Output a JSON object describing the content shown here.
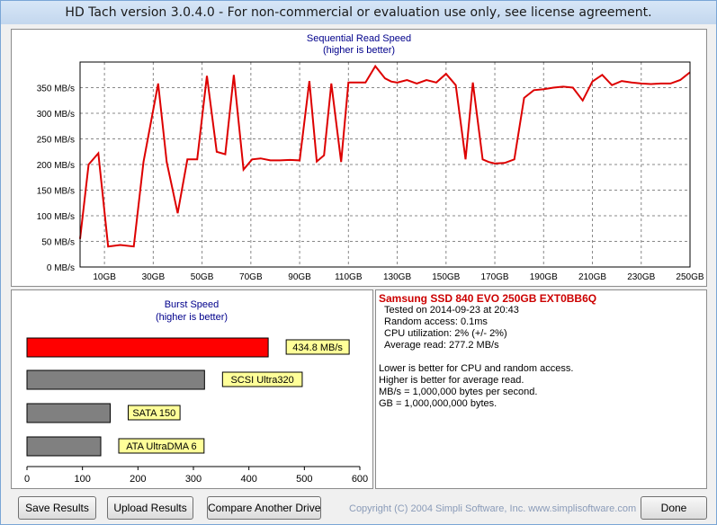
{
  "window": {
    "title": "HD Tach version 3.0.4.0  - For non-commercial or evaluation use only, see license agreement."
  },
  "sequential_chart": {
    "title": "Sequential Read Speed",
    "subtitle": "(higher is better)"
  },
  "burst_chart": {
    "title": "Burst Speed",
    "subtitle": "(higher is better)"
  },
  "chart_data": [
    {
      "type": "line",
      "title": "Sequential Read Speed",
      "subtitle": "(higher is better)",
      "xlim": [
        0,
        250
      ],
      "ylim": [
        0,
        400
      ],
      "grid": true,
      "y_ticks": [
        0,
        50,
        100,
        150,
        200,
        250,
        300,
        350
      ],
      "y_tick_labels": [
        "0 MB/s",
        "50 MB/s",
        "100 MB/s",
        "150 MB/s",
        "200 MB/s",
        "250 MB/s",
        "300 MB/s",
        "350 MB/s"
      ],
      "x_ticks": [
        10,
        30,
        50,
        70,
        90,
        110,
        130,
        150,
        170,
        190,
        210,
        230,
        250
      ],
      "x_tick_labels": [
        "10GB",
        "30GB",
        "50GB",
        "70GB",
        "90GB",
        "110GB",
        "130GB",
        "150GB",
        "170GB",
        "190GB",
        "210GB",
        "230GB",
        "250GB"
      ],
      "color": "#dd0000",
      "x": [
        0,
        3.5,
        7.5,
        11.5,
        16.5,
        22,
        26,
        32,
        35.5,
        40,
        44,
        48,
        52,
        56,
        59.5,
        63,
        67,
        70.5,
        74,
        78,
        82,
        86,
        90,
        94,
        97,
        100,
        103,
        107,
        110,
        113,
        117,
        121,
        125,
        127.5,
        130,
        134,
        138,
        142,
        146,
        150,
        154,
        158,
        161,
        165,
        167.5,
        170,
        174,
        178,
        182,
        186,
        190,
        194,
        198,
        202,
        206,
        210,
        214,
        218,
        222,
        226,
        230,
        234,
        238,
        242,
        246,
        250
      ],
      "y": [
        55,
        200,
        222,
        40,
        43,
        40,
        205,
        358,
        205,
        105,
        210,
        210,
        373,
        225,
        220,
        375,
        190,
        210,
        212,
        208,
        208,
        209,
        208,
        363,
        206,
        218,
        358,
        205,
        360,
        360,
        360,
        392,
        368,
        362,
        360,
        365,
        358,
        365,
        360,
        377,
        355,
        210,
        360,
        210,
        205,
        202,
        203,
        210,
        330,
        345,
        347,
        350,
        352,
        350,
        325,
        362,
        375,
        355,
        363,
        360,
        358,
        357,
        358,
        358,
        365,
        380
      ]
    },
    {
      "type": "bar",
      "orientation": "horizontal",
      "title": "Burst Speed",
      "subtitle": "(higher is better)",
      "xlim": [
        0,
        600
      ],
      "x_ticks": [
        0,
        100,
        200,
        300,
        400,
        500,
        600
      ],
      "categories": [
        "434.8 MB/s",
        "SCSI Ultra320",
        "SATA 150",
        "ATA UltraDMA 6"
      ],
      "values": [
        434.8,
        320,
        150,
        133
      ],
      "colors": [
        "#ff0000",
        "#808080",
        "#808080",
        "#808080"
      ]
    }
  ],
  "info": {
    "drive_name": "Samsung SSD 840 EVO 250GB EXT0BB6Q",
    "tested_on": "Tested on 2014-09-23 at 20:43",
    "random_access": "Random access: 0.1ms",
    "cpu_utilization": "CPU utilization: 2% (+/- 2%)",
    "average_read": "Average read: 277.2 MB/s",
    "note1": "Lower is better for CPU and random access.",
    "note2": "Higher is better for average read.",
    "note3": "MB/s = 1,000,000 bytes per second.",
    "note4": "GB = 1,000,000,000 bytes."
  },
  "buttons": {
    "save": "Save Results",
    "upload": "Upload Results",
    "compare": "Compare Another Drive",
    "done": "Done"
  },
  "footer": {
    "copyright": "Copyright (C) 2004 Simpli Software, Inc. www.simplisoftware.com"
  }
}
